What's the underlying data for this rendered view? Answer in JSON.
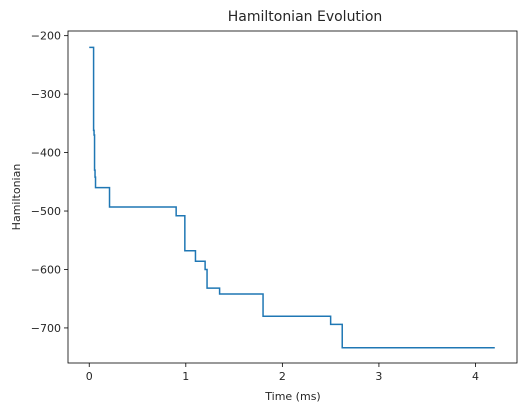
{
  "chart_data": {
    "type": "line",
    "title": "Hamiltonian Evolution",
    "xlabel": "Time (ms)",
    "ylabel": "Hamiltonian",
    "xlim": [
      -0.22,
      4.43
    ],
    "ylim": [
      -760,
      -192
    ],
    "xticks": [
      0,
      1,
      2,
      3,
      4
    ],
    "xtick_labels": [
      "0",
      "1",
      "2",
      "3",
      "4"
    ],
    "yticks": [
      -200,
      -300,
      -400,
      -500,
      -600,
      -700
    ],
    "ytick_labels": [
      "−200",
      "−300",
      "−400",
      "−500",
      "−600",
      "−700"
    ],
    "grid": false,
    "series": [
      {
        "color": "#1f77b4",
        "step": "post",
        "x": [
          0.0,
          0.04,
          0.045,
          0.05,
          0.055,
          0.06,
          0.065,
          0.21,
          0.9,
          0.99,
          1.1,
          1.2,
          1.22,
          1.35,
          1.8,
          2.5,
          2.62,
          4.2
        ],
        "y": [
          -220,
          -220,
          -362,
          -370,
          -430,
          -442,
          -460,
          -493,
          -508,
          -568,
          -586,
          -600,
          -632,
          -642,
          -680,
          -694,
          -734,
          -734
        ]
      }
    ]
  }
}
